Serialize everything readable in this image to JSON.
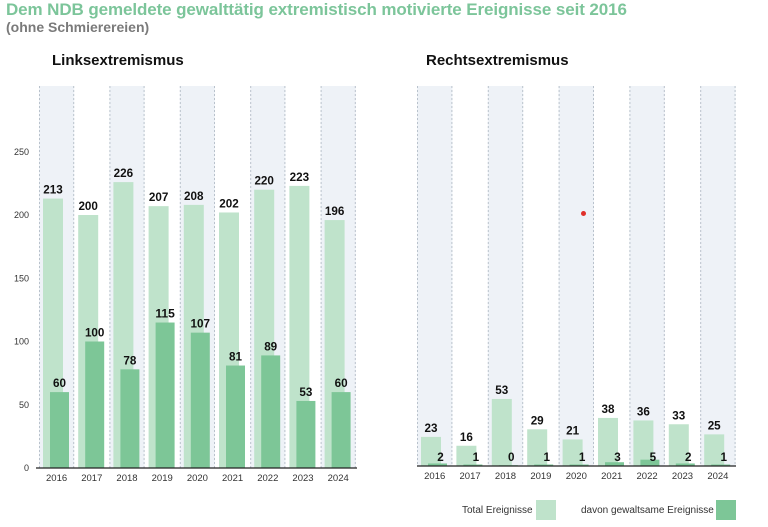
{
  "title": "Dem NDB gemeldete gewalttätig extremistisch motivierte Ereignisse seit 2016",
  "subtitle": "(ohne Schmierereien)",
  "colors": {
    "total": "#bfe3cb",
    "violent": "#7dc697",
    "band": "#eef2f7",
    "title": "#7cc59a"
  },
  "legend": {
    "total_label": "Total Ereignisse",
    "violent_label": "davon gewaltsame Ereignisse"
  },
  "chart_data": [
    {
      "type": "bar",
      "title": "Linksextremismus",
      "categories": [
        "2016",
        "2017",
        "2018",
        "2019",
        "2020",
        "2021",
        "2022",
        "2023",
        "2024"
      ],
      "series": [
        {
          "name": "Total Ereignisse",
          "values": [
            213,
            200,
            226,
            207,
            208,
            202,
            220,
            223,
            196
          ]
        },
        {
          "name": "davon gewaltsame Ereignisse",
          "values": [
            60,
            100,
            78,
            115,
            107,
            81,
            89,
            53,
            60
          ]
        }
      ],
      "yticks": [
        0,
        50,
        100,
        150,
        200,
        250
      ],
      "ylim": [
        0,
        300
      ],
      "xlabel": "",
      "ylabel": "",
      "legend": "bottom-right",
      "grid": false
    },
    {
      "type": "bar",
      "title": "Rechtsextremismus",
      "categories": [
        "2016",
        "2017",
        "2018",
        "2019",
        "2020",
        "2021",
        "2022",
        "2023",
        "2024"
      ],
      "series": [
        {
          "name": "Total Ereignisse",
          "values": [
            23,
            16,
            53,
            29,
            21,
            38,
            36,
            33,
            25
          ]
        },
        {
          "name": "davon gewaltsame Ereignisse",
          "values": [
            2,
            1,
            0,
            1,
            1,
            3,
            5,
            2,
            1
          ]
        }
      ],
      "yticks": [],
      "ylim": [
        0,
        300
      ],
      "xlabel": "",
      "ylabel": "",
      "legend": "bottom-right",
      "grid": false
    }
  ]
}
